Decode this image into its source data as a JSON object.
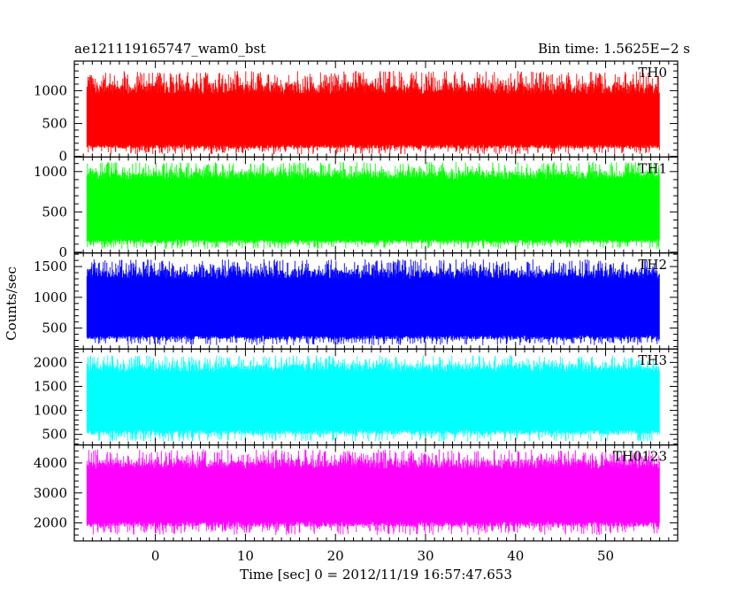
{
  "header": {
    "title": "ae121119165747_wam0_bst",
    "bin_time": "Bin time: 1.5625E−2 s"
  },
  "chart_data": {
    "type": "line",
    "xlabel": "Time [sec] 0 = 2012/11/19 16:57:47.653",
    "ylabel": "Counts/sec",
    "xlim": [
      -9,
      58
    ],
    "x_tick_labels": [
      "0",
      "10",
      "20",
      "30",
      "40",
      "50"
    ],
    "x_ticks": [
      0,
      10,
      20,
      30,
      40,
      50
    ],
    "x_data_range": [
      -7.6,
      56
    ],
    "panels": [
      {
        "name": "TH0",
        "color": "#ff0000",
        "ylim": [
          -10,
          1450
        ],
        "y_ticks": [
          0,
          500,
          1000
        ],
        "y_tick_labels": [
          "0",
          "500",
          "1000"
        ],
        "typical_min": 180,
        "typical_max": 950,
        "min": 30,
        "max": 1300
      },
      {
        "name": "TH1",
        "color": "#00ff00",
        "ylim": [
          -10,
          1180
        ],
        "y_ticks": [
          0,
          500,
          1000
        ],
        "y_tick_labels": [
          "0",
          "500",
          "1000"
        ],
        "typical_min": 160,
        "typical_max": 900,
        "min": 40,
        "max": 1120
      },
      {
        "name": "TH2",
        "color": "#0000ff",
        "ylim": [
          160,
          1720
        ],
        "y_ticks": [
          500,
          1000,
          1500
        ],
        "y_tick_labels": [
          "500",
          "1000",
          "1500"
        ],
        "typical_min": 380,
        "typical_max": 1300,
        "min": 220,
        "max": 1620
      },
      {
        "name": "TH3",
        "color": "#00ffff",
        "ylim": [
          280,
          2280
        ],
        "y_ticks": [
          500,
          1000,
          1500,
          2000
        ],
        "y_tick_labels": [
          "500",
          "1000",
          "1500",
          "2000"
        ],
        "typical_min": 600,
        "typical_max": 1800,
        "min": 350,
        "max": 2150
      },
      {
        "name": "TH0123",
        "color": "#ff00ff",
        "ylim": [
          1400,
          4600
        ],
        "y_ticks": [
          2000,
          3000,
          4000
        ],
        "y_tick_labels": [
          "2000",
          "3000",
          "4000"
        ],
        "typical_min": 2050,
        "typical_max": 3800,
        "min": 1600,
        "max": 4450
      }
    ]
  }
}
